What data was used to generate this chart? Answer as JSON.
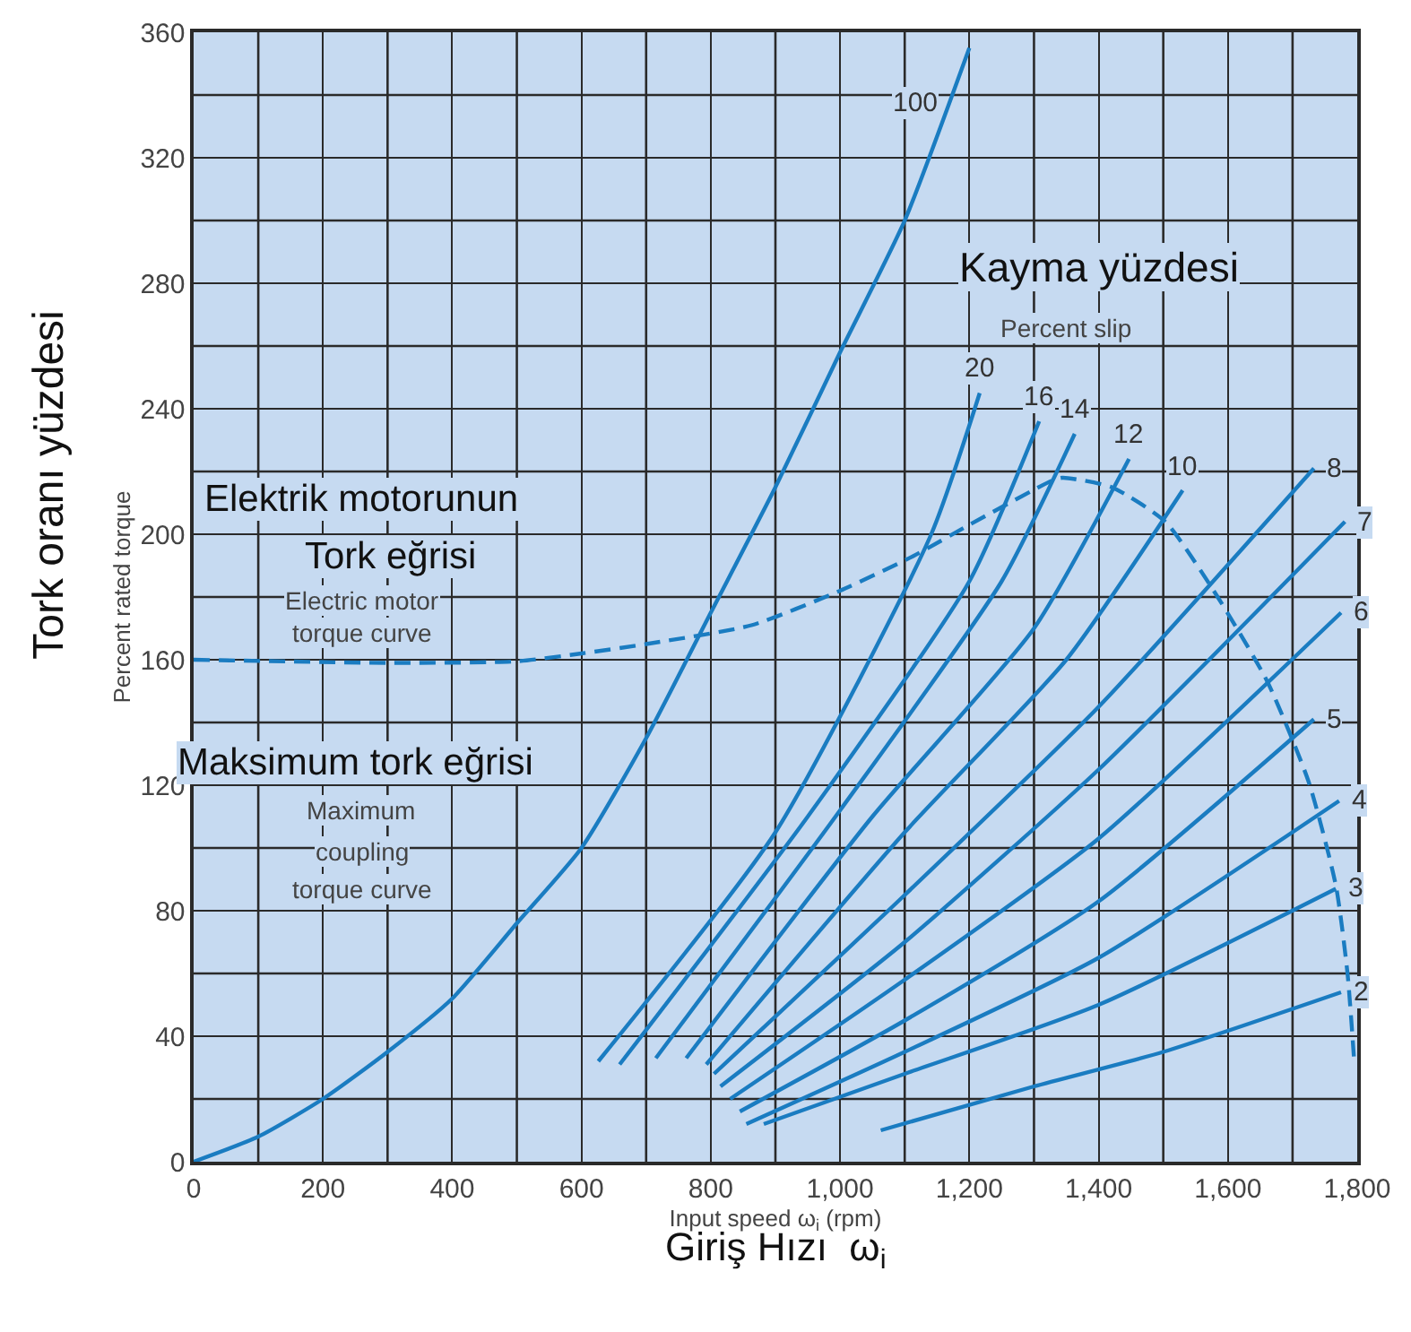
{
  "chart_data": {
    "type": "line",
    "xlabel": "Input speed ω$_{i}$ (rpm)",
    "ylabel": "Percent rated torque",
    "xlim": [
      0,
      1800
    ],
    "ylim": [
      0,
      360
    ],
    "xticks": [
      0,
      200,
      400,
      600,
      800,
      {
        "value": 1000,
        "label": "1,000"
      },
      {
        "value": 1200,
        "label": "1,200"
      },
      {
        "value": 1400,
        "label": "1,400"
      },
      {
        "value": 1600,
        "label": "1,600"
      },
      {
        "value": 1800,
        "label": "1,800"
      }
    ],
    "yticks": [
      0,
      40,
      80,
      120,
      160,
      200,
      240,
      280,
      320,
      360
    ],
    "grid": true,
    "legend": false,
    "marker": "none",
    "series": [
      {
        "name": "100",
        "color": "#1a7cc1",
        "x": [
          0,
          100,
          200,
          300,
          400,
          500,
          600,
          700,
          800,
          900,
          1000,
          1100,
          1200
        ],
        "values": [
          0,
          8,
          20,
          35,
          52,
          76,
          100,
          135,
          175,
          215,
          258,
          300,
          355
        ]
      },
      {
        "color": "#1a7cc1",
        "line_style": "dashed",
        "x": [
          0,
          300,
          500,
          600,
          700,
          863,
          1000,
          1113,
          1200,
          1327,
          1344,
          1420,
          1503,
          1578,
          1661,
          1725,
          1767,
          1785,
          1795
        ],
        "values": [
          160,
          159,
          159.5,
          162,
          165,
          171,
          182,
          193,
          203,
          217,
          218,
          215,
          204,
          182,
          153,
          121,
          88,
          60,
          33
        ]
      },
      {
        "name": "20",
        "color": "#1a7cc1",
        "x": [
          626,
          900,
          1141,
          1216
        ],
        "values": [
          32,
          105,
          200,
          245
        ]
      },
      {
        "name": "16",
        "color": "#1a7cc1",
        "x": [
          659,
          950,
          1200,
          1308
        ],
        "values": [
          31,
          110,
          185,
          236
        ]
      },
      {
        "name": "14",
        "color": "#1a7cc1",
        "x": [
          715,
          1000,
          1250,
          1363
        ],
        "values": [
          33,
          112,
          185,
          232
        ]
      },
      {
        "name": "12",
        "color": "#1a7cc1",
        "x": [
          762,
          1050,
          1300,
          1447
        ],
        "values": [
          33,
          110,
          170,
          224
        ]
      },
      {
        "name": "10",
        "color": "#1a7cc1",
        "x": [
          793,
          1100,
          1350,
          1530
        ],
        "values": [
          31,
          105,
          160,
          214
        ]
      },
      {
        "name": "8",
        "color": "#1a7cc1",
        "x": [
          805,
          1100,
          1400,
          1733
        ],
        "values": [
          28,
          85,
          145,
          221
        ]
      },
      {
        "name": "7",
        "color": "#1a7cc1",
        "x": [
          815,
          1100,
          1400,
          1781
        ],
        "values": [
          24,
          70,
          125,
          204
        ]
      },
      {
        "name": "6",
        "color": "#1a7cc1",
        "x": [
          830,
          1100,
          1400,
          1775
        ],
        "values": [
          20,
          58,
          103,
          175
        ]
      },
      {
        "name": "5",
        "color": "#1a7cc1",
        "x": [
          845,
          1100,
          1400,
          1733
        ],
        "values": [
          16,
          45,
          83,
          141
        ]
      },
      {
        "name": "4",
        "color": "#1a7cc1",
        "x": [
          855,
          1100,
          1400,
          1772
        ],
        "values": [
          12,
          35,
          65,
          115
        ]
      },
      {
        "name": "3",
        "color": "#1a7cc1",
        "x": [
          882,
          1100,
          1400,
          1767
        ],
        "values": [
          12,
          28,
          50,
          87
        ]
      },
      {
        "name": "2",
        "color": "#1a7cc1",
        "x": [
          1063,
          1300,
          1500,
          1775
        ],
        "values": [
          10,
          24,
          35,
          54
        ]
      }
    ],
    "annotations": [
      "Tork oranı yüzdesi",
      "Giriş Hızı  ω$_{i}$",
      "Kayma yüzdesi",
      "Percent slip",
      "Elektrik motorunun",
      "Tork eğrisi",
      "Electric motor",
      "torque curve",
      "Maksimum tork eğrisi",
      "Maximum",
      "coupling",
      "torque curve"
    ]
  }
}
